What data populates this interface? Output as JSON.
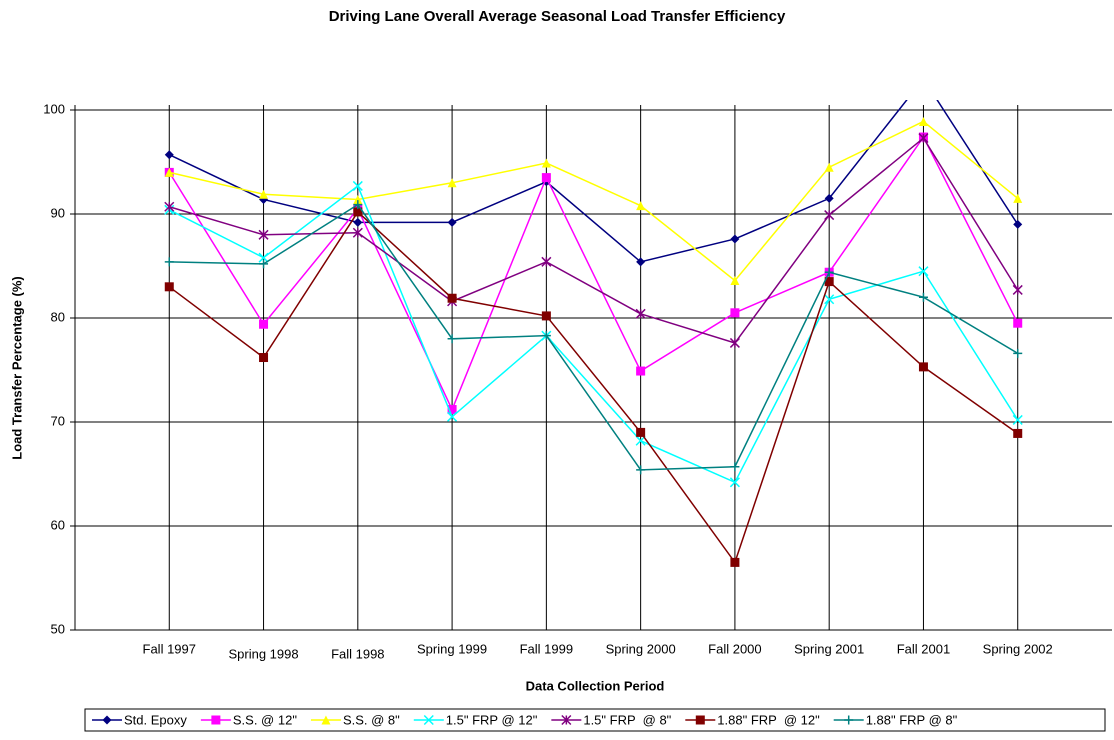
{
  "chart_data": {
    "type": "line",
    "title": "Driving Lane Overall Average Seasonal Load Transfer Efficiency",
    "x_label": "Data Collection Period",
    "y_label": "Load Transfer Percentage (%)",
    "categories": [
      "Fall 1997",
      "Spring 1998",
      "Fall 1998",
      "Spring 1999",
      "Fall 1999",
      "Spring 2000",
      "Fall 2000",
      "Spring 2001",
      "Fall 2001",
      "Spring 2002"
    ],
    "ylim": [
      50,
      100
    ],
    "yticks": [
      50,
      60,
      70,
      80,
      90,
      100
    ],
    "grid": true,
    "legend": "bottom",
    "series": [
      {
        "name": "Std. Epoxy",
        "color": "#000080",
        "marker": "diamond",
        "values": [
          95.7,
          91.4,
          89.2,
          89.2,
          93.1,
          85.4,
          87.6,
          91.5,
          103,
          89.0
        ]
      },
      {
        "name": "S.S. @ 12\"",
        "color": "#ff00ff",
        "marker": "square",
        "values": [
          94.0,
          79.4,
          90.5,
          71.2,
          93.5,
          74.9,
          80.5,
          84.4,
          97.4,
          79.5
        ]
      },
      {
        "name": "S.S. @ 8\"",
        "color": "#ffff00",
        "marker": "triangle",
        "values": [
          94.0,
          91.9,
          91.4,
          93.0,
          94.9,
          90.8,
          83.6,
          94.5,
          98.9,
          91.5
        ]
      },
      {
        "name": "1.5\" FRP @ 12\"",
        "color": "#00ffff",
        "marker": "x",
        "values": [
          90.4,
          85.8,
          92.7,
          70.5,
          78.3,
          68.2,
          64.2,
          81.8,
          84.5,
          70.2
        ]
      },
      {
        "name": "1.5\" FRP  @ 8\"",
        "color": "#800080",
        "marker": "star",
        "values": [
          90.7,
          88.0,
          88.2,
          81.6,
          85.4,
          80.4,
          77.6,
          89.9,
          97.3,
          82.7
        ]
      },
      {
        "name": "1.88\" FRP  @ 12\"",
        "color": "#800000",
        "marker": "square",
        "values": [
          83.0,
          76.2,
          90.2,
          81.9,
          80.2,
          69.0,
          56.5,
          83.5,
          75.3,
          68.9
        ]
      },
      {
        "name": "1.88\" FRP @ 8\"",
        "color": "#008080",
        "marker": "plus",
        "values": [
          85.4,
          85.2,
          90.9,
          78.0,
          78.3,
          65.4,
          65.7,
          84.4,
          82.0,
          76.6
        ]
      }
    ]
  }
}
